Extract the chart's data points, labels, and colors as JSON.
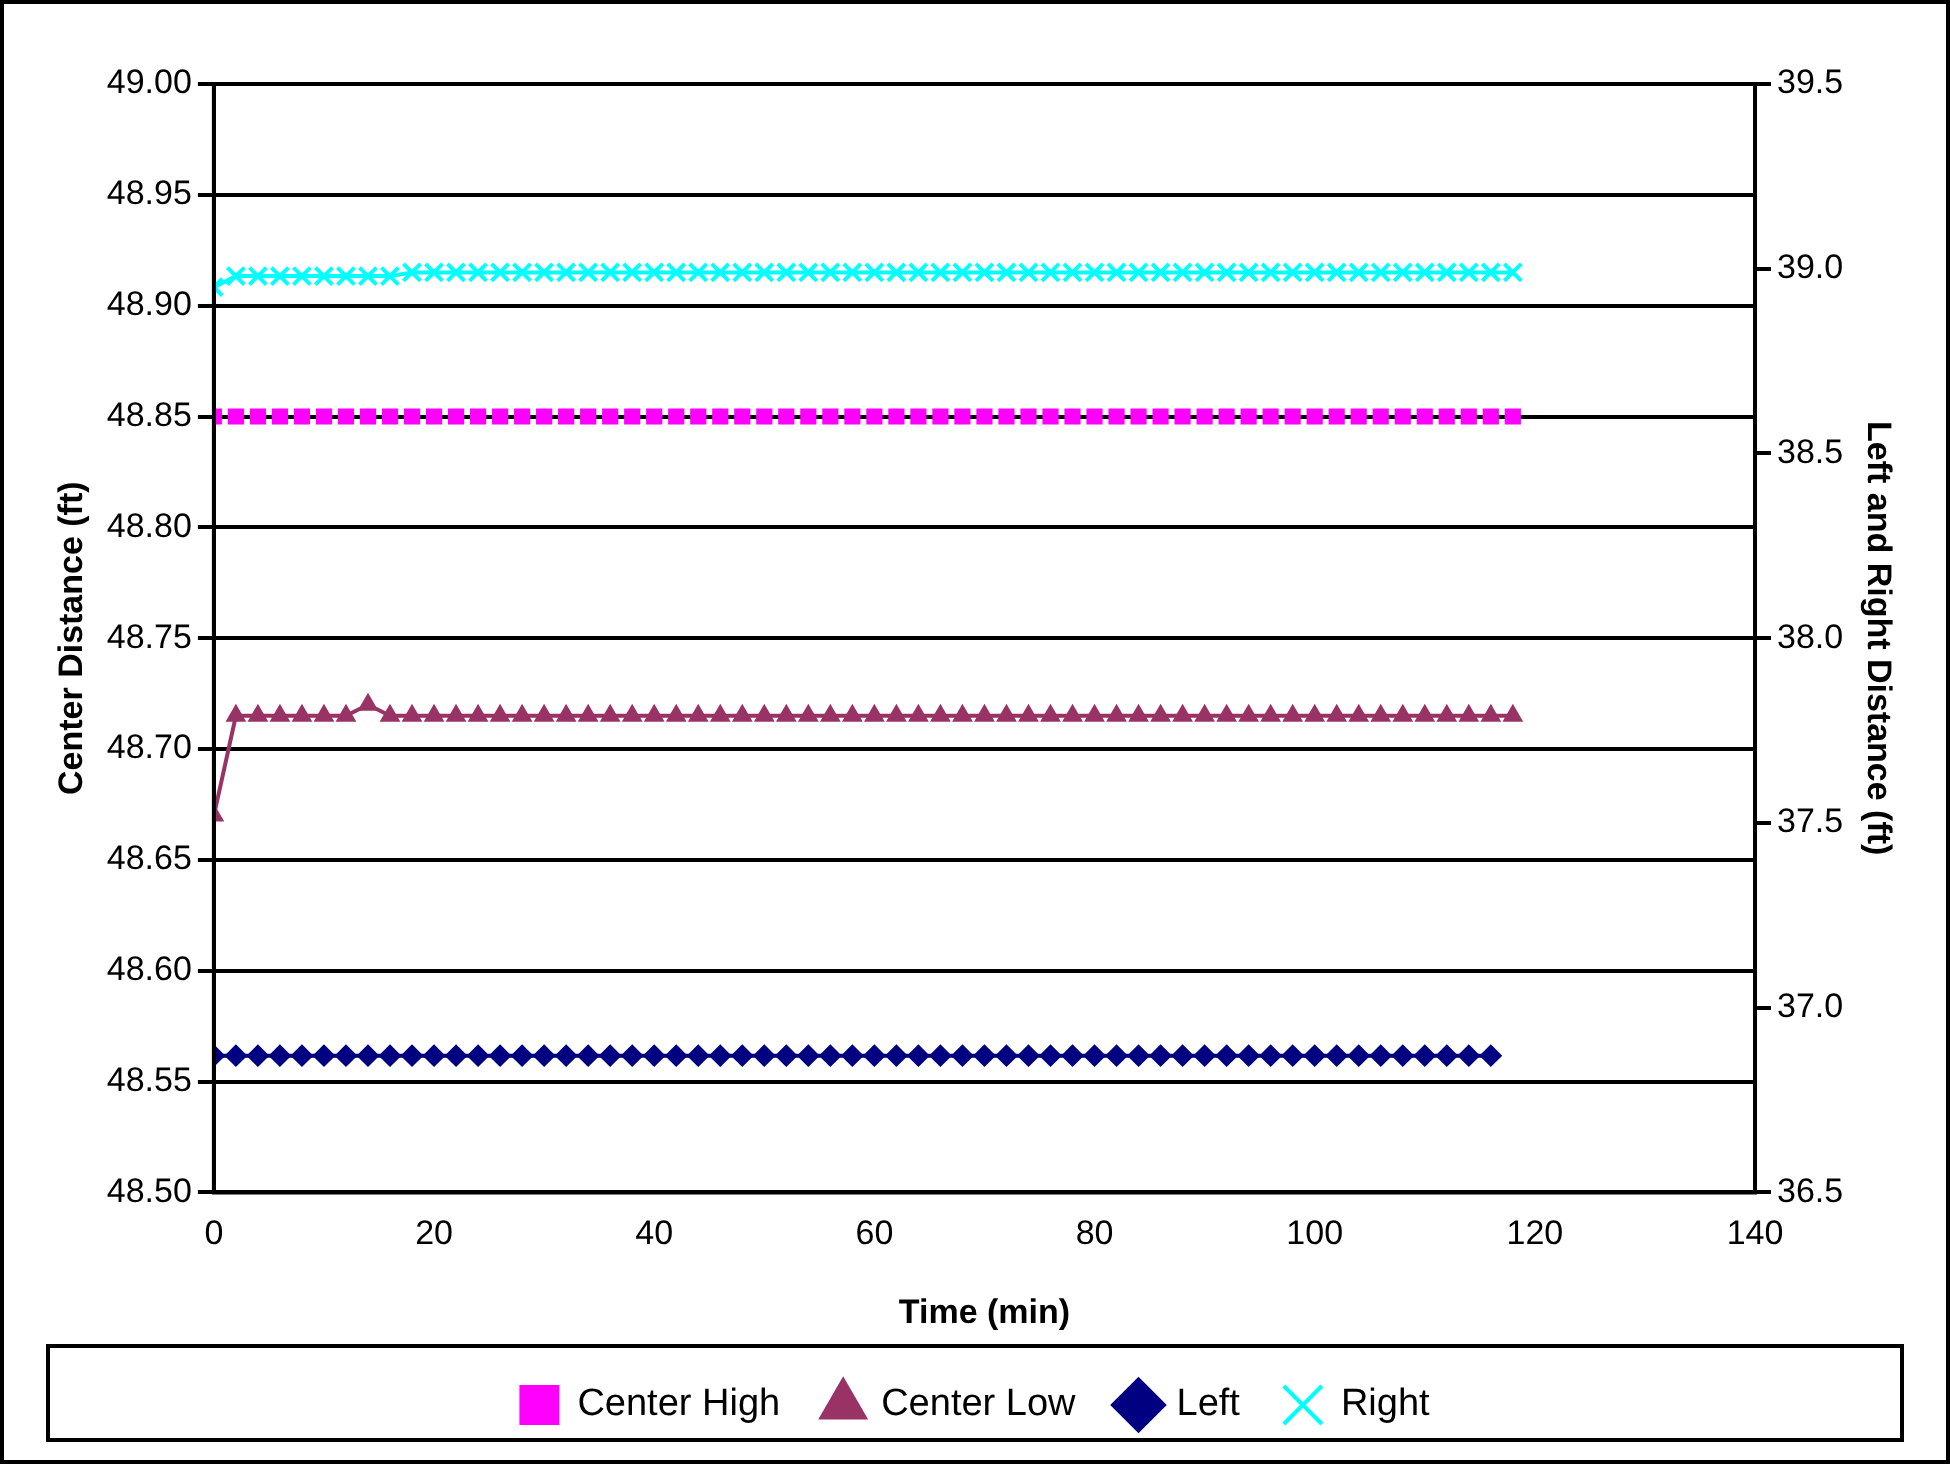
{
  "chart_data": {
    "type": "line",
    "xlabel": "Time (min)",
    "ylabel": "Center Distance (ft)",
    "y2label": "Left and Right Distance (ft)",
    "x": [
      0,
      2,
      4,
      6,
      8,
      10,
      12,
      14,
      16,
      18,
      20,
      22,
      24,
      26,
      28,
      30,
      32,
      34,
      36,
      38,
      40,
      42,
      44,
      46,
      48,
      50,
      52,
      54,
      56,
      58,
      60,
      62,
      64,
      66,
      68,
      70,
      72,
      74,
      76,
      78,
      80,
      82,
      84,
      86,
      88,
      90,
      92,
      94,
      96,
      98,
      100,
      102,
      104,
      106,
      108,
      110,
      112,
      114,
      116,
      118
    ],
    "xlim": [
      0,
      140
    ],
    "xticks": [
      0,
      20,
      40,
      60,
      80,
      100,
      120,
      140
    ],
    "ylim": [
      48.5,
      49.0
    ],
    "yticks": [
      {
        "value": 48.5,
        "label": "48.50"
      },
      {
        "value": 48.55,
        "label": "48.55"
      },
      {
        "value": 48.6,
        "label": "48.60"
      },
      {
        "value": 48.65,
        "label": "48.65"
      },
      {
        "value": 48.7,
        "label": "48.70"
      },
      {
        "value": 48.75,
        "label": "48.75"
      },
      {
        "value": 48.8,
        "label": "48.80"
      },
      {
        "value": 48.85,
        "label": "48.85"
      },
      {
        "value": 48.9,
        "label": "48.90"
      },
      {
        "value": 48.95,
        "label": "48.95"
      },
      {
        "value": 49.0,
        "label": "49.00"
      }
    ],
    "y2lim": [
      36.5,
      39.5
    ],
    "y2ticks": [
      {
        "value": 36.5,
        "label": "36.5"
      },
      {
        "value": 37,
        "label": "37.0"
      },
      {
        "value": 37.5,
        "label": "37.5"
      },
      {
        "value": 38,
        "label": "38.0"
      },
      {
        "value": 38.5,
        "label": "38.5"
      },
      {
        "value": 39,
        "label": "39.0"
      },
      {
        "value": 39.5,
        "label": "39.5"
      }
    ],
    "grid": "y",
    "legend": "bottom",
    "series": [
      {
        "name": "Center High",
        "type": "scatter",
        "marker": "square",
        "color": "#ff00ff",
        "values": [
          48.85,
          48.85,
          48.85,
          48.85,
          48.85,
          48.85,
          48.85,
          48.85,
          48.85,
          48.85,
          48.85,
          48.85,
          48.85,
          48.85,
          48.85,
          48.85,
          48.85,
          48.85,
          48.85,
          48.85,
          48.85,
          48.85,
          48.85,
          48.85,
          48.85,
          48.85,
          48.85,
          48.85,
          48.85,
          48.85,
          48.85,
          48.85,
          48.85,
          48.85,
          48.85,
          48.85,
          48.85,
          48.85,
          48.85,
          48.85,
          48.85,
          48.85,
          48.85,
          48.85,
          48.85,
          48.85,
          48.85,
          48.85,
          48.85,
          48.85,
          48.85,
          48.85,
          48.85,
          48.85,
          48.85,
          48.85,
          48.85,
          48.85,
          48.85,
          48.85
        ]
      },
      {
        "name": "Center Low",
        "marker": "triangle",
        "color": "#993366",
        "values": [
          48.67,
          48.715,
          48.715,
          48.715,
          48.715,
          48.715,
          48.715,
          48.72,
          48.715,
          48.715,
          48.715,
          48.715,
          48.715,
          48.715,
          48.715,
          48.715,
          48.715,
          48.715,
          48.715,
          48.715,
          48.715,
          48.715,
          48.715,
          48.715,
          48.715,
          48.715,
          48.715,
          48.715,
          48.715,
          48.715,
          48.715,
          48.715,
          48.715,
          48.715,
          48.715,
          48.715,
          48.715,
          48.715,
          48.715,
          48.715,
          48.715,
          48.715,
          48.715,
          48.715,
          48.715,
          48.715,
          48.715,
          48.715,
          48.715,
          48.715,
          48.715,
          48.715,
          48.715,
          48.715,
          48.715,
          48.715,
          48.715,
          48.715,
          48.715,
          48.715
        ]
      },
      {
        "name": "Left",
        "marker": "diamond",
        "axis": "y2",
        "color": "#000080",
        "values": [
          36.87,
          36.87,
          36.87,
          36.87,
          36.87,
          36.87,
          36.87,
          36.87,
          36.87,
          36.87,
          36.87,
          36.87,
          36.87,
          36.87,
          36.87,
          36.87,
          36.87,
          36.87,
          36.87,
          36.87,
          36.87,
          36.87,
          36.87,
          36.87,
          36.87,
          36.87,
          36.87,
          36.87,
          36.87,
          36.87,
          36.87,
          36.87,
          36.87,
          36.87,
          36.87,
          36.87,
          36.87,
          36.87,
          36.87,
          36.87,
          36.87,
          36.87,
          36.87,
          36.87,
          36.87,
          36.87,
          36.87,
          36.87,
          36.87,
          36.87,
          36.87,
          36.87,
          36.87,
          36.87,
          36.87,
          36.87,
          36.87,
          36.87,
          36.87,
          null
        ]
      },
      {
        "name": "Right",
        "marker": "cross",
        "axis": "y2",
        "color": "#00ffff",
        "values": [
          38.95,
          38.98,
          38.98,
          38.98,
          38.98,
          38.98,
          38.98,
          38.98,
          38.98,
          38.99,
          38.99,
          38.99,
          38.99,
          38.99,
          38.99,
          38.99,
          38.99,
          38.99,
          38.99,
          38.99,
          38.99,
          38.99,
          38.99,
          38.99,
          38.99,
          38.99,
          38.99,
          38.99,
          38.99,
          38.99,
          38.99,
          38.99,
          38.99,
          38.99,
          38.99,
          38.99,
          38.99,
          38.99,
          38.99,
          38.99,
          38.99,
          38.99,
          38.99,
          38.99,
          38.99,
          38.99,
          38.99,
          38.99,
          38.99,
          38.99,
          38.99,
          38.99,
          38.99,
          38.99,
          38.99,
          38.99,
          38.99,
          38.99,
          38.99,
          38.99
        ]
      }
    ]
  }
}
